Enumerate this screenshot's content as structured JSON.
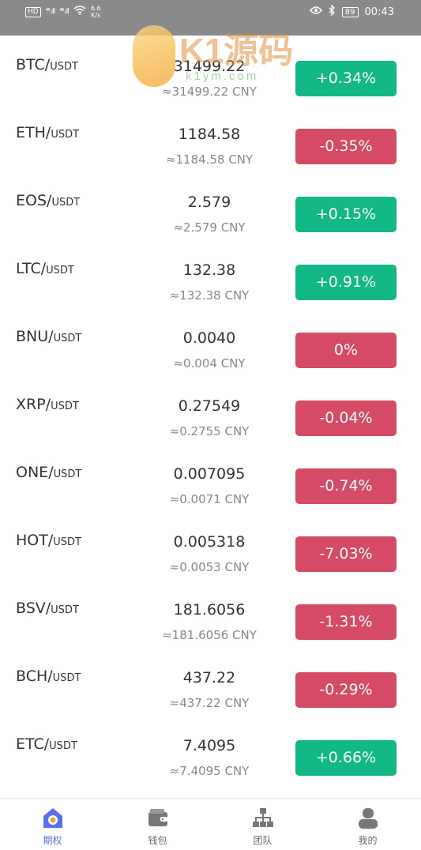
{
  "status_bar": {
    "hd": "HD",
    "sig1": "⁴⁶.ıll",
    "sig2": "⁴⁶.ıll",
    "speed_value": "6.6",
    "speed_unit": "K/s",
    "battery": "89",
    "time": "00:43"
  },
  "watermark": {
    "text": "K1源码",
    "sub": "k1ym.com"
  },
  "markets": [
    {
      "base": "BTC",
      "quote": "USDT",
      "price": "31499.22",
      "cny": "≈31499.22 CNY",
      "change": "+0.34%",
      "dir": "up"
    },
    {
      "base": "ETH",
      "quote": "USDT",
      "price": "1184.58",
      "cny": "≈1184.58 CNY",
      "change": "-0.35%",
      "dir": "down"
    },
    {
      "base": "EOS",
      "quote": "USDT",
      "price": "2.579",
      "cny": "≈2.579 CNY",
      "change": "+0.15%",
      "dir": "up"
    },
    {
      "base": "LTC",
      "quote": "USDT",
      "price": "132.38",
      "cny": "≈132.38 CNY",
      "change": "+0.91%",
      "dir": "up"
    },
    {
      "base": "BNU",
      "quote": "USDT",
      "price": "0.0040",
      "cny": "≈0.004 CNY",
      "change": "0%",
      "dir": "down"
    },
    {
      "base": "XRP",
      "quote": "USDT",
      "price": "0.27549",
      "cny": "≈0.2755 CNY",
      "change": "-0.04%",
      "dir": "down"
    },
    {
      "base": "ONE",
      "quote": "USDT",
      "price": "0.007095",
      "cny": "≈0.0071 CNY",
      "change": "-0.74%",
      "dir": "down"
    },
    {
      "base": "HOT",
      "quote": "USDT",
      "price": "0.005318",
      "cny": "≈0.0053 CNY",
      "change": "-7.03%",
      "dir": "down"
    },
    {
      "base": "BSV",
      "quote": "USDT",
      "price": "181.6056",
      "cny": "≈181.6056 CNY",
      "change": "-1.31%",
      "dir": "down"
    },
    {
      "base": "BCH",
      "quote": "USDT",
      "price": "437.22",
      "cny": "≈437.22 CNY",
      "change": "-0.29%",
      "dir": "down"
    },
    {
      "base": "ETC",
      "quote": "USDT",
      "price": "7.4095",
      "cny": "≈7.4095 CNY",
      "change": "+0.66%",
      "dir": "up"
    }
  ],
  "tabs": [
    {
      "label": "期权",
      "icon": "options-icon",
      "active": true
    },
    {
      "label": "钱包",
      "icon": "wallet-icon",
      "active": false
    },
    {
      "label": "团队",
      "icon": "team-icon",
      "active": false
    },
    {
      "label": "我的",
      "icon": "profile-icon",
      "active": false
    }
  ],
  "colors": {
    "up": "#12b886",
    "down": "#d54a64",
    "active_tab": "#5a6ef5",
    "status_bar": "#8a8a8a"
  }
}
